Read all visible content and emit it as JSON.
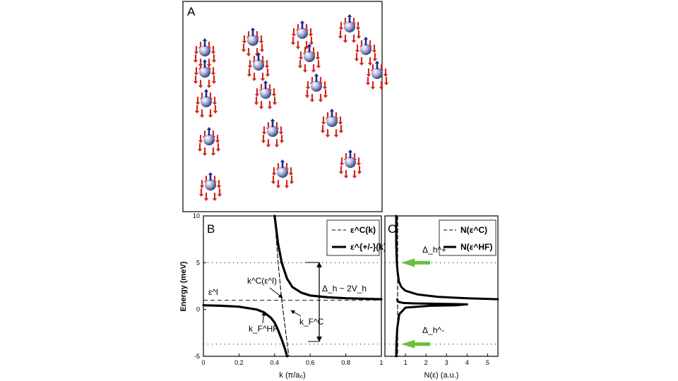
{
  "figure": {
    "panel_a": {
      "letter": "A"
    },
    "panel_b": {
      "letter": "B"
    },
    "panel_c": {
      "letter": "C"
    }
  },
  "chart_data": [
    {
      "panel": "B",
      "type": "line",
      "xlabel": "k (π/a₀)",
      "ylabel": "Energy (meV)",
      "xlim": [
        0,
        1
      ],
      "ylim": [
        -5,
        10
      ],
      "x_ticks": [
        "0",
        "0.2",
        "0.4",
        "0.6",
        "0.8",
        "1"
      ],
      "y_ticks": [
        "-5",
        "0",
        "5",
        "10"
      ],
      "grid": false,
      "reference_lines_y": [
        5,
        1,
        -3.7
      ],
      "legend": {
        "position": "top-right",
        "entries": [
          "ε^C(k)",
          "ε^{+/-}(k)"
        ]
      },
      "series": [
        {
          "name": "ε^C(k)",
          "style": "dashed",
          "x": [
            0.4,
            0.42,
            0.44,
            0.46,
            0.48
          ],
          "y": [
            10,
            5,
            1,
            -2,
            -5
          ]
        },
        {
          "name": "ε^{+/-}(k) upper",
          "style": "solid-thick",
          "x": [
            0.4,
            0.42,
            0.44,
            0.47,
            0.5,
            0.55,
            0.6,
            0.7,
            0.8,
            1.0
          ],
          "y": [
            10,
            7.0,
            5.0,
            3.3,
            2.4,
            1.8,
            1.5,
            1.3,
            1.2,
            1.1
          ]
        },
        {
          "name": "ε^{+/-}(k) lower",
          "style": "solid-thick",
          "x": [
            0.0,
            0.1,
            0.2,
            0.3,
            0.34,
            0.38,
            0.4,
            0.42,
            0.44,
            0.46,
            0.47
          ],
          "y": [
            0.45,
            0.4,
            0.3,
            0.0,
            -0.3,
            -0.9,
            -1.4,
            -2.2,
            -3.2,
            -4.3,
            -5
          ]
        }
      ],
      "annotations": {
        "eps_l": "ε^l",
        "kc": "k^C(ε^l)",
        "delta": "Δ_h ~ 2V_h",
        "kf_hf": "k_F^HF",
        "kf_c": "k_F^C"
      }
    },
    {
      "panel": "C",
      "type": "line",
      "xlabel": "N(ε) (a.u.)",
      "ylabel": "",
      "xlim": [
        0,
        5.5
      ],
      "ylim": [
        -5,
        10
      ],
      "x_ticks": [
        "1",
        "2",
        "3",
        "4",
        "5"
      ],
      "grid": false,
      "reference_lines_y": [
        5,
        -3.7
      ],
      "legend": {
        "position": "top-right",
        "entries": [
          "N(ε^C)",
          "N(ε^HF)"
        ]
      },
      "series": [
        {
          "name": "N(ε^C)",
          "style": "dashed",
          "x": [
            0.62,
            0.62,
            0.62
          ],
          "y": [
            10,
            1,
            -5
          ]
        },
        {
          "name": "N(ε^HF) upper",
          "style": "solid-thick",
          "x": [
            0.55,
            0.55,
            0.58,
            0.62,
            0.68,
            0.8,
            1.0,
            1.6,
            2.6,
            4.0,
            5.5
          ],
          "y": [
            10,
            7,
            5,
            4,
            3,
            2.4,
            2.0,
            1.6,
            1.35,
            1.2,
            1.1
          ]
        },
        {
          "name": "N(ε^HF) lower",
          "style": "solid-thick",
          "x": [
            0.6,
            0.62,
            0.7,
            0.9,
            1.4,
            2.2,
            3.0,
            4.0,
            3.4,
            2.2,
            1.0,
            0.7,
            0.6,
            0.56,
            0.55
          ],
          "y": [
            1.1,
            0.9,
            0.8,
            0.7,
            0.65,
            0.62,
            0.6,
            0.55,
            0.45,
            0.4,
            0.2,
            -0.5,
            -2,
            -3.7,
            -5
          ]
        }
      ],
      "annotations": {
        "delta_plus": "Δ_h^+",
        "delta_minus": "Δ_h^-",
        "arrow_color": "#6abf40"
      }
    }
  ]
}
